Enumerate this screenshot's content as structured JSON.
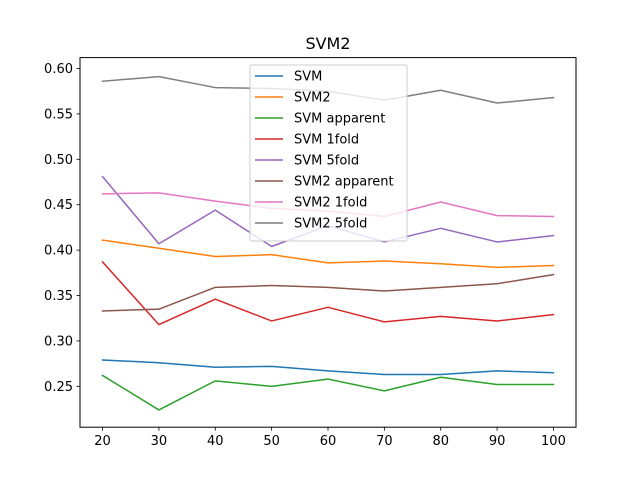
{
  "chart_data": {
    "type": "line",
    "title": "SVM2",
    "xlabel": "",
    "ylabel": "",
    "x": [
      20,
      30,
      40,
      50,
      60,
      70,
      80,
      90,
      100
    ],
    "xticks": [
      "20",
      "30",
      "40",
      "50",
      "60",
      "70",
      "80",
      "90",
      "100"
    ],
    "yticks": [
      "0.25",
      "0.30",
      "0.35",
      "0.40",
      "0.45",
      "0.50",
      "0.55",
      "0.60"
    ],
    "ytick_values": [
      0.25,
      0.3,
      0.35,
      0.4,
      0.45,
      0.5,
      0.55,
      0.6
    ],
    "xlim": [
      16,
      104
    ],
    "ylim": [
      0.205,
      0.612
    ],
    "grid": false,
    "legend_position": "top-center",
    "series": [
      {
        "name": "SVM",
        "color": "#1f77b4",
        "values": [
          0.279,
          0.276,
          0.271,
          0.272,
          0.267,
          0.263,
          0.263,
          0.267,
          0.265
        ]
      },
      {
        "name": "SVM2",
        "color": "#ff7f0e",
        "values": [
          0.411,
          0.402,
          0.393,
          0.395,
          0.386,
          0.388,
          0.385,
          0.381,
          0.383
        ]
      },
      {
        "name": "SVM apparent",
        "color": "#2ca02c",
        "values": [
          0.262,
          0.224,
          0.256,
          0.25,
          0.258,
          0.245,
          0.26,
          0.252,
          0.252
        ]
      },
      {
        "name": "SVM 1fold",
        "color": "#d62728",
        "values": [
          0.387,
          0.318,
          0.346,
          0.322,
          0.337,
          0.321,
          0.327,
          0.322,
          0.329
        ]
      },
      {
        "name": "SVM 5fold",
        "color": "#9467bd",
        "values": [
          0.481,
          0.407,
          0.444,
          0.404,
          0.427,
          0.409,
          0.424,
          0.409,
          0.416
        ]
      },
      {
        "name": "SVM2 apparent",
        "color": "#8c564b",
        "values": [
          0.333,
          0.335,
          0.359,
          0.361,
          0.359,
          0.355,
          0.359,
          0.363,
          0.373
        ]
      },
      {
        "name": "SVM2 1fold",
        "color": "#e377c2",
        "values": [
          0.462,
          0.463,
          0.454,
          0.446,
          0.443,
          0.437,
          0.453,
          0.438,
          0.437
        ]
      },
      {
        "name": "SVM2 5fold",
        "color": "#7f7f7f",
        "values": [
          0.586,
          0.591,
          0.579,
          0.578,
          0.575,
          0.565,
          0.576,
          0.562,
          0.568
        ]
      }
    ]
  }
}
